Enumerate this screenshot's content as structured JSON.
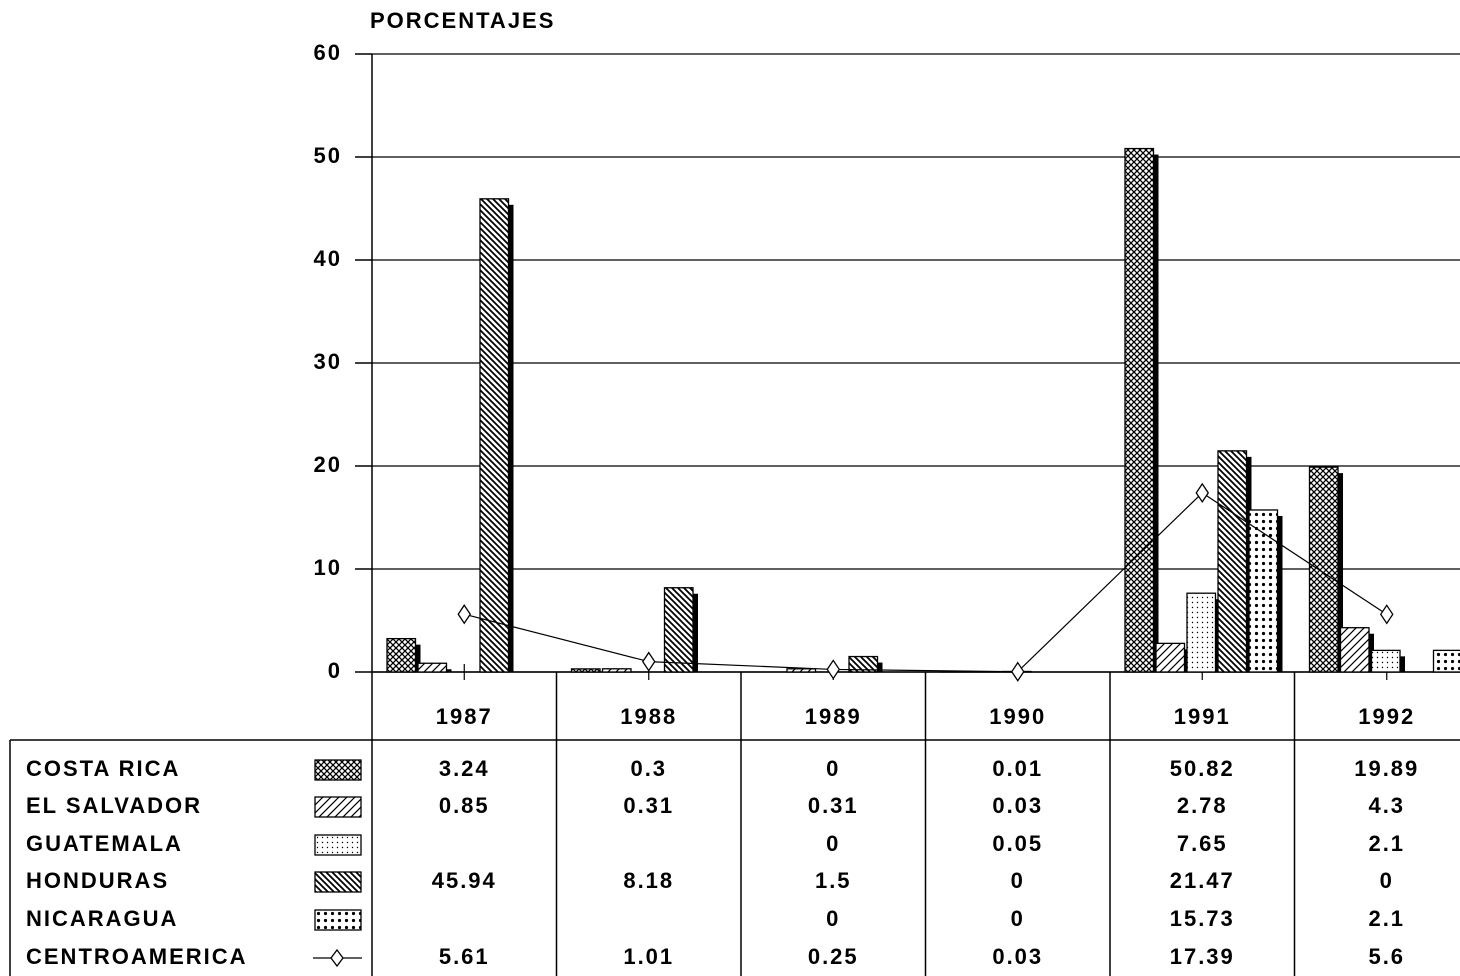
{
  "chart_data": {
    "type": "bar",
    "y_label": "PORCENTAJES",
    "categories": [
      "1987",
      "1988",
      "1989",
      "1990",
      "1991",
      "1992"
    ],
    "ylim": [
      0,
      60
    ],
    "yticks": [
      0,
      10,
      20,
      30,
      40,
      50,
      60
    ],
    "grid": true,
    "series": [
      {
        "name": "COSTA RICA",
        "color": "#000000",
        "pattern": "crosshatch",
        "values": [
          3.24,
          0.3,
          0,
          0.01,
          50.82,
          19.89
        ]
      },
      {
        "name": "EL SALVADOR",
        "color": "#000000",
        "pattern": "diagonal",
        "values": [
          0.85,
          0.31,
          0.31,
          0.03,
          2.78,
          4.3
        ]
      },
      {
        "name": "GUATEMALA",
        "color": "#000000",
        "pattern": "sparse-dots",
        "values": [
          null,
          null,
          0,
          0.05,
          7.65,
          2.1
        ]
      },
      {
        "name": "HONDURAS",
        "color": "#000000",
        "pattern": "back-diagonal",
        "values": [
          45.94,
          8.18,
          1.5,
          0,
          21.47,
          0
        ]
      },
      {
        "name": "NICARAGUA",
        "color": "#000000",
        "pattern": "dense-dots",
        "values": [
          null,
          null,
          0,
          0,
          15.73,
          2.1
        ]
      },
      {
        "name": "CENTROAMERICA",
        "color": "#000000",
        "type": "line",
        "marker": "diamond",
        "values": [
          5.61,
          1.01,
          0.25,
          0.03,
          17.39,
          5.6
        ]
      }
    ]
  }
}
